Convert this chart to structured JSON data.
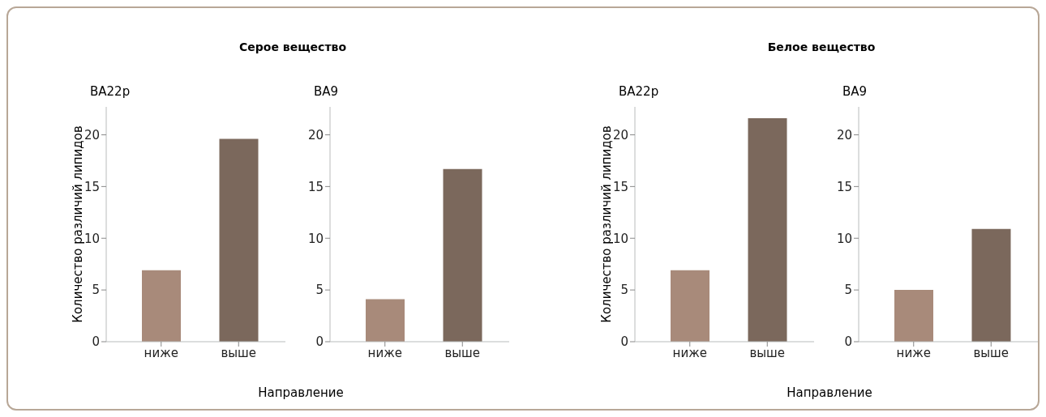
{
  "chart_data": [
    {
      "type": "bar",
      "title": "Серое вещество",
      "subtitle": "BA22p",
      "xlabel": "Направление",
      "ylabel": "Количество различий липидов",
      "categories": [
        "ниже",
        "выше"
      ],
      "values": [
        6.9,
        19.6
      ],
      "colors": [
        "#a88a7a",
        "#7b685c"
      ],
      "ylim": [
        0,
        22.7
      ],
      "yticks": [
        0,
        5,
        10,
        15,
        20
      ]
    },
    {
      "type": "bar",
      "subtitle": "BA9",
      "categories": [
        "ниже",
        "выше"
      ],
      "values": [
        4.1,
        16.7
      ],
      "colors": [
        "#a88a7a",
        "#7b685c"
      ],
      "ylim": [
        0,
        22.7
      ],
      "yticks": [
        0,
        5,
        10,
        15,
        20
      ]
    },
    {
      "type": "bar",
      "title": "Белое вещество",
      "subtitle": "BA22p",
      "xlabel": "Направление",
      "ylabel": "Количество различий липидов",
      "categories": [
        "ниже",
        "выше"
      ],
      "values": [
        6.9,
        21.6
      ],
      "colors": [
        "#a88a7a",
        "#7b685c"
      ],
      "ylim": [
        0,
        22.7
      ],
      "yticks": [
        0,
        5,
        10,
        15,
        20
      ]
    },
    {
      "type": "bar",
      "subtitle": "BA9",
      "categories": [
        "ниже",
        "выше"
      ],
      "values": [
        5.0,
        10.9
      ],
      "colors": [
        "#a88a7a",
        "#7b685c"
      ],
      "ylim": [
        0,
        22.7
      ],
      "yticks": [
        0,
        5,
        10,
        15,
        20
      ]
    }
  ]
}
